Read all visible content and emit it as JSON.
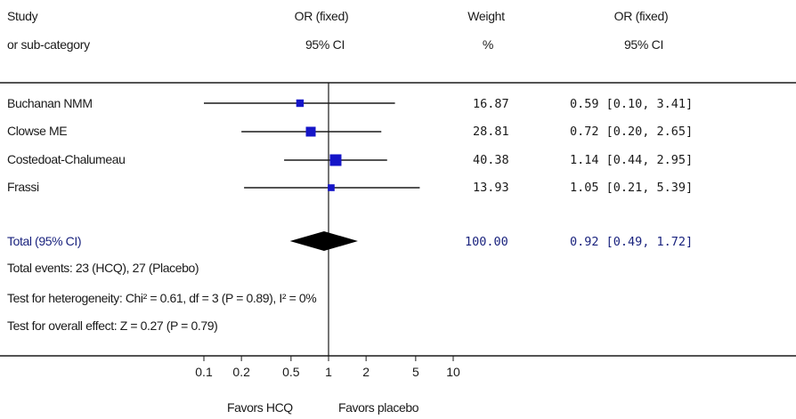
{
  "headers": {
    "study_line1": "Study",
    "study_line2": "or sub-category",
    "or_plot_line1": "OR (fixed)",
    "or_plot_line2": "95% CI",
    "weight_line1": "Weight",
    "weight_line2": "%",
    "or_text_line1": "OR (fixed)",
    "or_text_line2": "95% CI"
  },
  "colors": {
    "marker": "#1515c8",
    "diamond": "#000000",
    "total_text": "#1a237e",
    "line": "#1a1a1a"
  },
  "chart_data": {
    "type": "forest",
    "xscale": "log",
    "xlim": [
      0.1,
      10
    ],
    "reference_line": 1,
    "studies": [
      {
        "name": "Buchanan NMM",
        "or": 0.59,
        "lower": 0.1,
        "upper": 3.41,
        "weight": 16.87,
        "weight_text": "16.87",
        "ci_text": "0.59 [0.10, 3.41]"
      },
      {
        "name": "Clowse ME",
        "or": 0.72,
        "lower": 0.2,
        "upper": 2.65,
        "weight": 28.81,
        "weight_text": "28.81",
        "ci_text": "0.72 [0.20, 2.65]"
      },
      {
        "name": "Costedoat-Chalumeau",
        "or": 1.14,
        "lower": 0.44,
        "upper": 2.95,
        "weight": 40.38,
        "weight_text": "40.38",
        "ci_text": "1.14 [0.44, 2.95]"
      },
      {
        "name": "Frassi",
        "or": 1.05,
        "lower": 0.21,
        "upper": 5.39,
        "weight": 13.93,
        "weight_text": "13.93",
        "ci_text": "1.05 [0.21, 5.39]"
      }
    ],
    "total": {
      "name": "Total (95% CI)",
      "or": 0.92,
      "lower": 0.49,
      "upper": 1.72,
      "weight_text": "100.00",
      "ci_text": "0.92 [0.49, 1.72]"
    },
    "ticks": [
      0.1,
      0.2,
      0.5,
      1,
      2,
      5,
      10
    ],
    "tick_labels": [
      "0.1",
      "0.2",
      "0.5",
      "1",
      "2",
      "5",
      "10"
    ],
    "left_label": "Favors HCQ",
    "right_label": "Favors placebo"
  },
  "stats": {
    "events": "Total events: 23 (HCQ), 27 (Placebo)",
    "heterogeneity": "Test for heterogeneity: Chi² = 0.61, df = 3 (P = 0.89), I² = 0%",
    "overall": "Test for overall effect: Z = 0.27 (P = 0.79)"
  }
}
